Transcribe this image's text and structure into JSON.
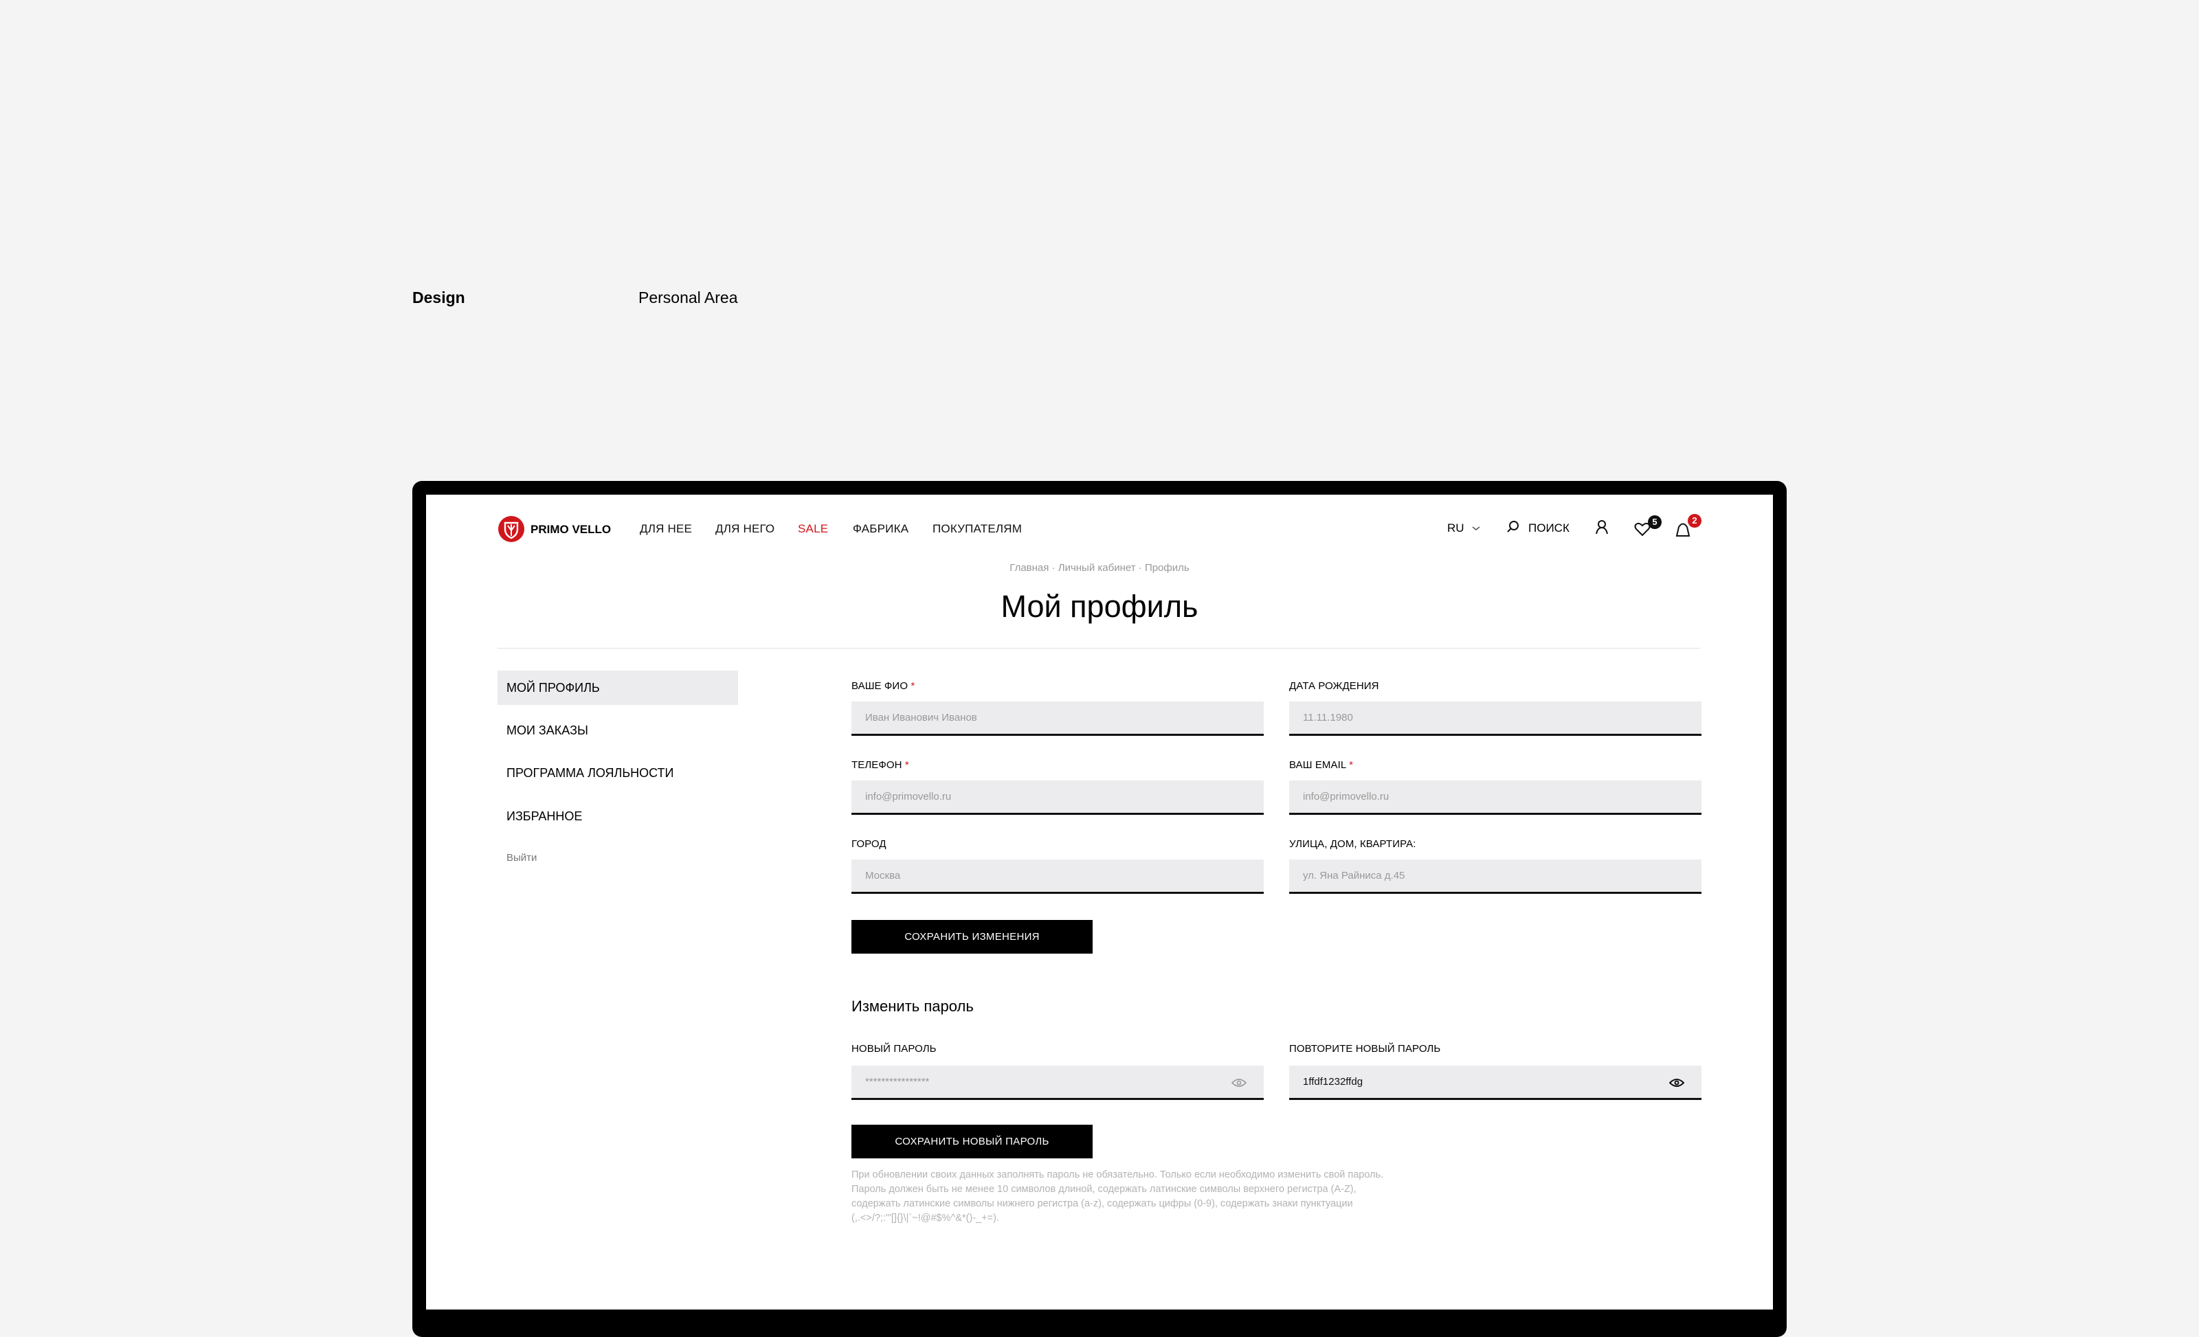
{
  "page": {
    "section_label": "Design",
    "section_title": "Personal Area"
  },
  "header": {
    "logo_text": "PRIMO VELLO",
    "nav": [
      {
        "label": "ДЛЯ НЕЕ"
      },
      {
        "label": "ДЛЯ НЕГО"
      },
      {
        "label": "SALE",
        "color": "#d0171c"
      },
      {
        "label": "ФАБРИКА"
      },
      {
        "label": "ПОКУПАТЕЛЯМ"
      }
    ],
    "language": "RU",
    "search_label": "ПОИСК",
    "favorites_count": "5",
    "cart_count": "2"
  },
  "breadcrumb": [
    "Главная",
    "Личный кабинет",
    "Профиль"
  ],
  "title": "Мой профиль",
  "sidebar": {
    "items": [
      {
        "label": "МОЙ ПРОФИЛЬ",
        "active": true
      },
      {
        "label": "МОИ ЗАКАЗЫ"
      },
      {
        "label": "ПРОГРАММА ЛОЯЛЬНОСТИ"
      },
      {
        "label": "ИЗБРАННОЕ"
      }
    ],
    "logout": "Выйти"
  },
  "profile_form": {
    "fields": [
      {
        "label": "ВАШЕ ФИО",
        "required": "*",
        "placeholder": "Иван Иванович Иванов"
      },
      {
        "label": "ДАТА РОЖДЕНИЯ",
        "required": "",
        "placeholder": "11.11.1980"
      },
      {
        "label": "ТЕЛЕФОН",
        "required": "*",
        "placeholder": "info@primovello.ru"
      },
      {
        "label": "ВАШ EMAIL ",
        "required": "*",
        "placeholder": "info@primovello.ru"
      },
      {
        "label": "ГОРОД",
        "required": "",
        "placeholder": "Москва"
      },
      {
        "label": "УЛИЦА, ДОМ, КВАРТИРА:",
        "required": "",
        "placeholder": "ул. Яна Райниса д.45"
      }
    ],
    "save_label": "СОХРАНИТЬ ИЗМЕНЕНИЯ"
  },
  "password_form": {
    "title": "Изменить пароль",
    "new_label": "НОВЫЙ ПАРОЛЬ",
    "new_placeholder": "****************",
    "repeat_label": "ПОВТОРИТЕ НОВЫЙ ПАРОЛЬ",
    "repeat_value": "1ffdf1232ffdg",
    "save_label": "СОХРАНИТЬ НОВЫЙ ПАРОЛЬ",
    "help_lines": [
      "При обновлении своих данных заполнять пароль не обязательно. Только если необходимо изменить свой пароль.",
      "Пароль должен быть не менее 10 символов длиной, содержать латинские символы верхнего регистра (A-Z),",
      "содержать латинские символы нижнего регистра (a-z), содержать цифры (0-9), содержать знаки пунктуации",
      "(,.<>/?;:'\"[]{}\\|`~!@#$%^&*()-_+=)."
    ]
  },
  "colors": {
    "accent": "#d0171c",
    "input_bg": "#ececee",
    "frame": "#000000"
  }
}
